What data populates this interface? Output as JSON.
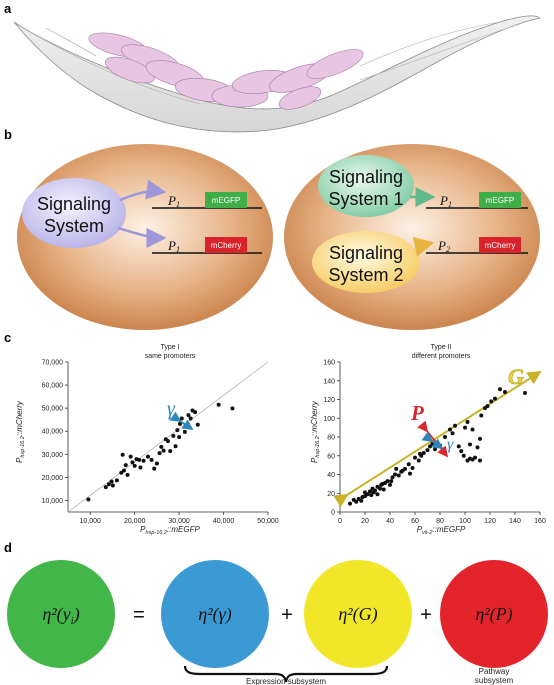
{
  "panels": {
    "a": "a",
    "b": "b",
    "c": "c",
    "d": "d"
  },
  "panel_b": {
    "left": {
      "system": [
        "Signaling",
        "System"
      ],
      "promoter_top": "P",
      "promoter_top_sub": "1",
      "gene_top": "mEGFP",
      "promoter_bottom": "P",
      "promoter_bottom_sub": "1",
      "gene_bottom": "mCherry"
    },
    "right": {
      "system1": [
        "Signaling",
        "System 1"
      ],
      "system2": [
        "Signaling",
        "System 2"
      ],
      "promoter_top": "P",
      "promoter_top_sub": "1",
      "gene_top": "mEGFP",
      "promoter_bottom": "P",
      "promoter_bottom_sub": "2",
      "gene_bottom": "mCherry"
    }
  },
  "chart_data": [
    {
      "type": "scatter",
      "title": "Type I",
      "subtitle": "same promoters",
      "xlabel": {
        "prefix": "P",
        "sub": "hsp-16.2",
        "suffix": "::mEGFP"
      },
      "ylabel": {
        "prefix": "P",
        "sub": "hsp-16.2",
        "suffix": "::mCherry"
      },
      "xlim": [
        5000,
        50000
      ],
      "ylim": [
        5000,
        70000
      ],
      "xticks": [
        "10,000",
        "20,000",
        "30,000",
        "40,000",
        "50,000"
      ],
      "yticks": [
        "10,000",
        "20,000",
        "30,000",
        "40,000",
        "50,000",
        "60,000",
        "70,000"
      ],
      "xtick_values": [
        10000,
        20000,
        30000,
        40000,
        50000
      ],
      "ytick_values": [
        10000,
        20000,
        30000,
        40000,
        50000,
        60000,
        70000
      ],
      "reference_line": {
        "from": [
          5000,
          5000
        ],
        "to": [
          50000,
          70000
        ]
      },
      "annotations": [
        {
          "text": "γ",
          "color": "#2f86b8"
        }
      ],
      "points": [
        [
          9600,
          10400
        ],
        [
          13500,
          15800
        ],
        [
          14200,
          17000
        ],
        [
          14800,
          18200
        ],
        [
          15100,
          16500
        ],
        [
          16000,
          18700
        ],
        [
          17000,
          22000
        ],
        [
          17600,
          23000
        ],
        [
          17300,
          29800
        ],
        [
          18000,
          25300
        ],
        [
          18400,
          21100
        ],
        [
          19100,
          29000
        ],
        [
          19500,
          26500
        ],
        [
          20000,
          25000
        ],
        [
          20400,
          27900
        ],
        [
          21000,
          27600
        ],
        [
          21300,
          24300
        ],
        [
          22000,
          27200
        ],
        [
          23000,
          29000
        ],
        [
          23800,
          27600
        ],
        [
          24400,
          23800
        ],
        [
          25000,
          26000
        ],
        [
          25600,
          30500
        ],
        [
          26000,
          33200
        ],
        [
          26500,
          31600
        ],
        [
          27000,
          36500
        ],
        [
          27500,
          35700
        ],
        [
          28000,
          31400
        ],
        [
          28700,
          38000
        ],
        [
          29200,
          33500
        ],
        [
          29600,
          40500
        ],
        [
          30000,
          37500
        ],
        [
          30200,
          43200
        ],
        [
          30600,
          45500
        ],
        [
          31300,
          39700
        ],
        [
          31800,
          42300
        ],
        [
          32100,
          47000
        ],
        [
          32600,
          45500
        ],
        [
          33000,
          49000
        ],
        [
          33600,
          48300
        ],
        [
          34200,
          42800
        ],
        [
          38900,
          51500
        ],
        [
          42000,
          49900
        ]
      ]
    },
    {
      "type": "scatter",
      "title": "Type II",
      "subtitle": "different promoters",
      "xlabel": {
        "prefix": "P",
        "sub": "vit-2",
        "suffix": "::mEGFP"
      },
      "ylabel": {
        "prefix": "P",
        "sub": "hsp-16.2",
        "suffix": "::mCherry"
      },
      "xlim": [
        0,
        160
      ],
      "ylim": [
        0,
        160
      ],
      "xticks": [
        "0",
        "20",
        "40",
        "60",
        "80",
        "100",
        "120",
        "140",
        "160"
      ],
      "yticks": [
        "0",
        "20",
        "40",
        "60",
        "80",
        "100",
        "120",
        "140",
        "160"
      ],
      "xtick_values": [
        0,
        20,
        40,
        60,
        80,
        100,
        120,
        140,
        160
      ],
      "ytick_values": [
        0,
        20,
        40,
        60,
        80,
        100,
        120,
        140,
        160
      ],
      "annotations": [
        {
          "text": "G",
          "color": "#e8d33a"
        },
        {
          "text": "P",
          "color": "#d9282f"
        },
        {
          "text": "γ",
          "color": "#2f86b8"
        }
      ],
      "points": [
        [
          8,
          9
        ],
        [
          11,
          13
        ],
        [
          13,
          11
        ],
        [
          15,
          14
        ],
        [
          17,
          12
        ],
        [
          18,
          16
        ],
        [
          20,
          17
        ],
        [
          20,
          21
        ],
        [
          22,
          19
        ],
        [
          24,
          22
        ],
        [
          25,
          18
        ],
        [
          26,
          25
        ],
        [
          27,
          21
        ],
        [
          28,
          23
        ],
        [
          30,
          27
        ],
        [
          30,
          19
        ],
        [
          32,
          25
        ],
        [
          33,
          29
        ],
        [
          34,
          30
        ],
        [
          35,
          24
        ],
        [
          36,
          31
        ],
        [
          38,
          33
        ],
        [
          40,
          29
        ],
        [
          41,
          33
        ],
        [
          42,
          37
        ],
        [
          44,
          40
        ],
        [
          45,
          46
        ],
        [
          47,
          39
        ],
        [
          49,
          43
        ],
        [
          50,
          44
        ],
        [
          52,
          46
        ],
        [
          55,
          51
        ],
        [
          56,
          41
        ],
        [
          58,
          47
        ],
        [
          60,
          58
        ],
        [
          63,
          55
        ],
        [
          64,
          62
        ],
        [
          65,
          60
        ],
        [
          67,
          63
        ],
        [
          70,
          66
        ],
        [
          72,
          70
        ],
        [
          74,
          73
        ],
        [
          76,
          67
        ],
        [
          80,
          71
        ],
        [
          84,
          80
        ],
        [
          88,
          88
        ],
        [
          90,
          84
        ],
        [
          92,
          92
        ],
        [
          95,
          70
        ],
        [
          97,
          65
        ],
        [
          99,
          60
        ],
        [
          102,
          55
        ],
        [
          104,
          57
        ],
        [
          106,
          56
        ],
        [
          108,
          58
        ],
        [
          112,
          55
        ],
        [
          100,
          90
        ],
        [
          102,
          96
        ],
        [
          104,
          72
        ],
        [
          106,
          88
        ],
        [
          110,
          69
        ],
        [
          112,
          78
        ],
        [
          113,
          103
        ],
        [
          116,
          111
        ],
        [
          118,
          113
        ],
        [
          121,
          118
        ],
        [
          124,
          121
        ],
        [
          128,
          131
        ],
        [
          132,
          128
        ],
        [
          148,
          127
        ]
      ]
    }
  ],
  "panel_d": {
    "lhs": {
      "label": "η²(y",
      "sub": "i",
      "close": ")",
      "color": "#43b649"
    },
    "equals": "=",
    "plus1": "+",
    "plus2": "+",
    "c1": {
      "label": "η²(γ)",
      "color": "#3b9ad3"
    },
    "c2": {
      "label": "η²(G)",
      "color": "#f1e628"
    },
    "c3": {
      "label": "η²(P)",
      "color": "#e3252b"
    },
    "expression_label": "Expression subsystem",
    "pathway_label": [
      "Pathway",
      "subsystem"
    ]
  }
}
